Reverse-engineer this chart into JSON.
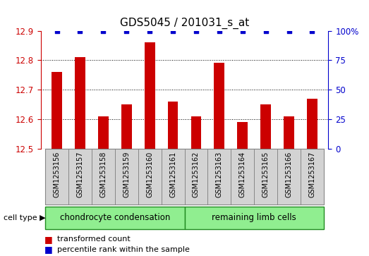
{
  "title": "GDS5045 / 201031_s_at",
  "samples": [
    "GSM1253156",
    "GSM1253157",
    "GSM1253158",
    "GSM1253159",
    "GSM1253160",
    "GSM1253161",
    "GSM1253162",
    "GSM1253163",
    "GSM1253164",
    "GSM1253165",
    "GSM1253166",
    "GSM1253167"
  ],
  "values": [
    12.76,
    12.81,
    12.61,
    12.65,
    12.86,
    12.66,
    12.61,
    12.79,
    12.59,
    12.65,
    12.61,
    12.67
  ],
  "ylim": [
    12.5,
    12.9
  ],
  "yticks": [
    12.5,
    12.6,
    12.7,
    12.8,
    12.9
  ],
  "y2ticks": [
    0,
    25,
    50,
    75,
    100
  ],
  "bar_color": "#cc0000",
  "dot_color": "#0000cc",
  "bar_width": 0.45,
  "cell_type_groups": [
    {
      "label": "chondrocyte condensation",
      "start": 0,
      "end": 5
    },
    {
      "label": "remaining limb cells",
      "start": 6,
      "end": 11
    }
  ],
  "cell_type_color": "#90ee90",
  "cell_type_edge_color": "#228B22",
  "cell_type_label": "cell type",
  "legend_bar_label": "transformed count",
  "legend_dot_label": "percentile rank within the sample",
  "bar_label_color": "#cc0000",
  "dot_label_color": "#0000cc",
  "title_fontsize": 11,
  "tick_fontsize": 8.5,
  "sample_fontsize": 7,
  "celltype_fontsize": 8.5,
  "legend_fontsize": 8
}
